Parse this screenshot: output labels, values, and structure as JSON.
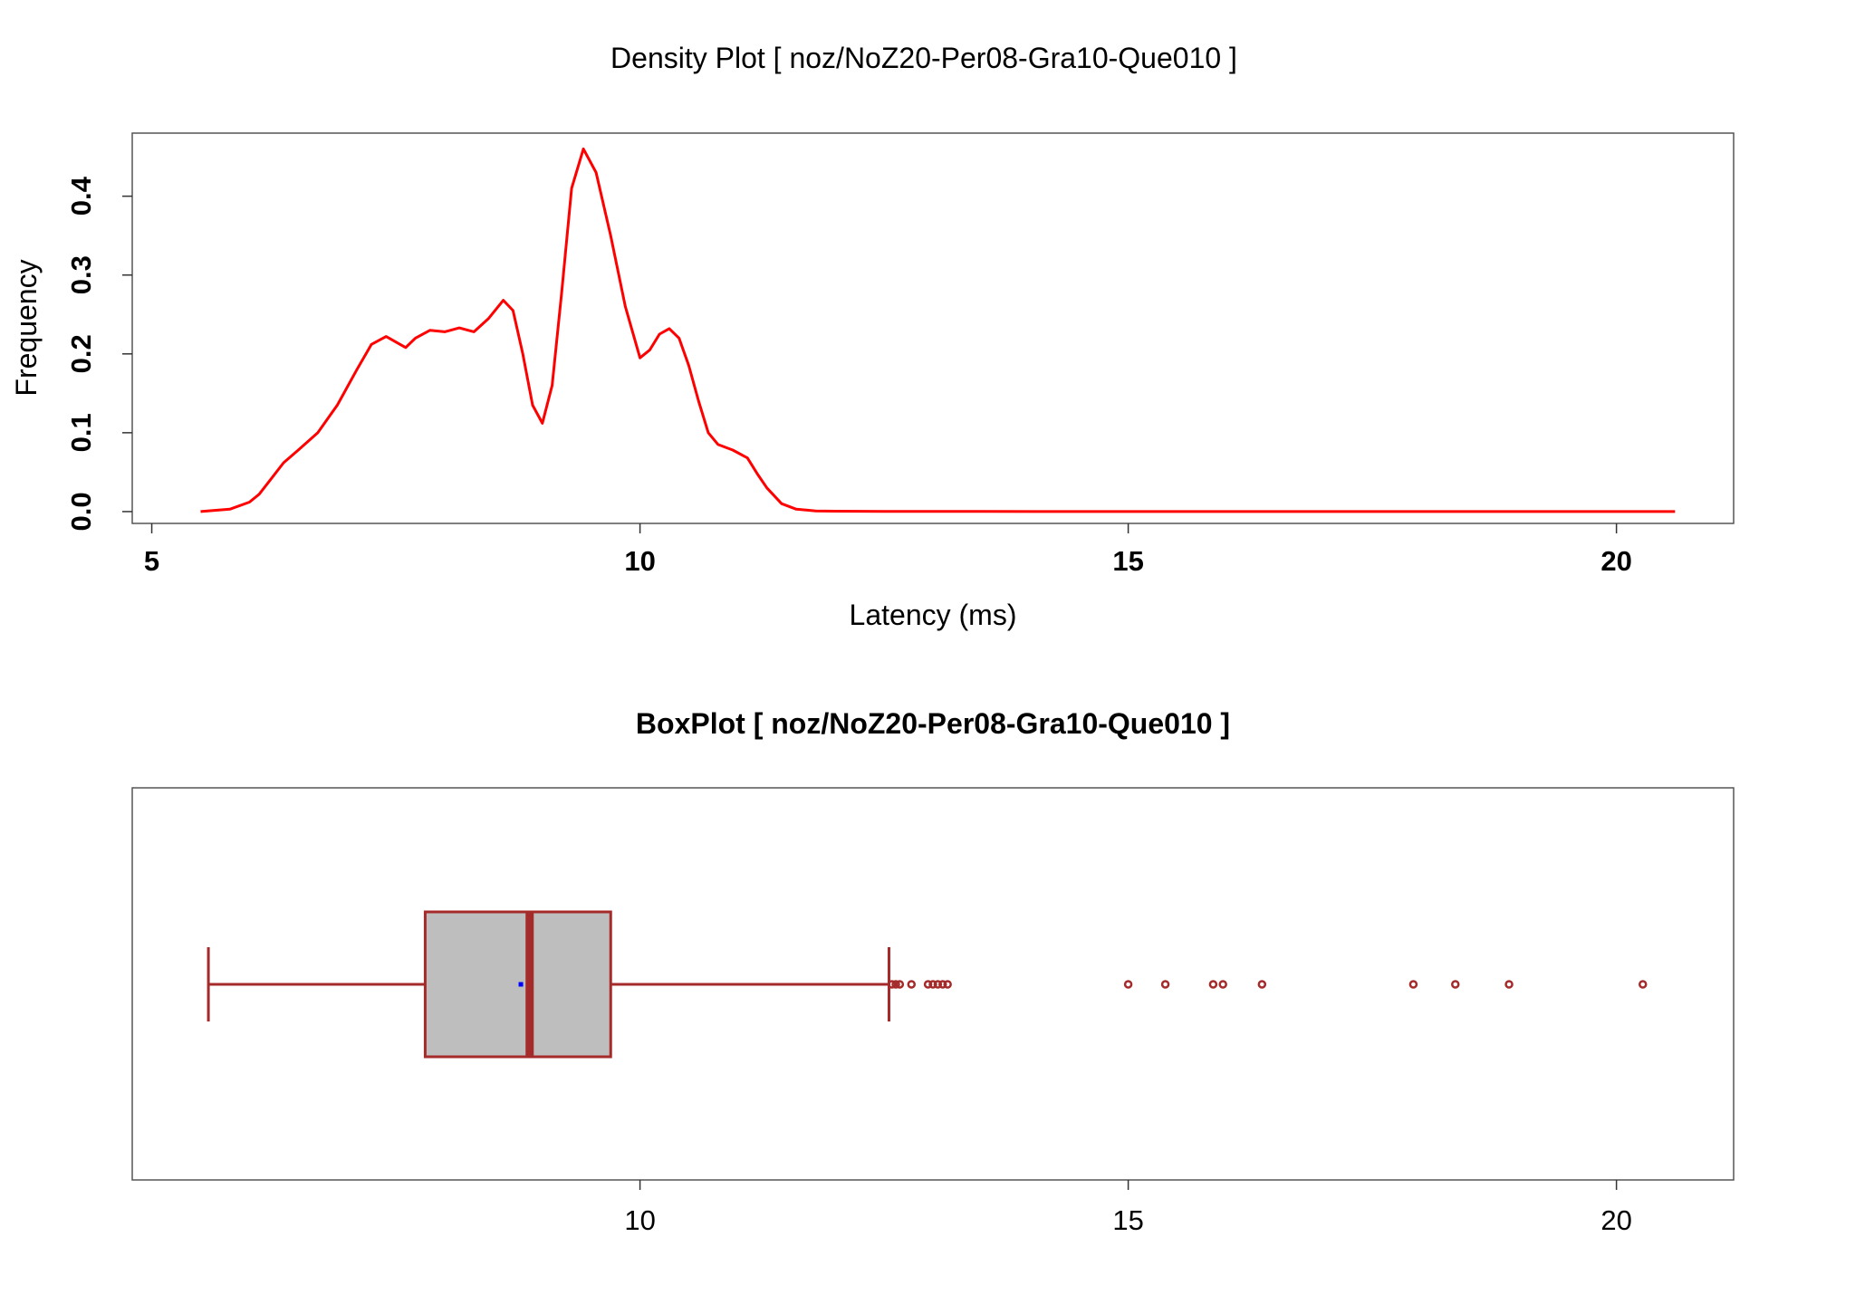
{
  "chart_data": [
    {
      "type": "line",
      "title": "Density Plot [ noz/NoZ20-Per08-Gra10-Que010 ]",
      "xlabel": "Latency (ms)",
      "ylabel": "Frequency",
      "xlim": [
        4.8,
        21.2
      ],
      "ylim": [
        -0.015,
        0.48
      ],
      "x_ticks": [
        "5",
        "10",
        "15",
        "20"
      ],
      "y_ticks": [
        "0.0",
        "0.1",
        "0.2",
        "0.3",
        "0.4"
      ],
      "grid": false,
      "legend": "none",
      "series": [
        {
          "color": "#ff0000",
          "x": [
            5.5,
            5.8,
            6.0,
            6.1,
            6.2,
            6.35,
            6.5,
            6.7,
            6.9,
            7.1,
            7.25,
            7.4,
            7.5,
            7.6,
            7.7,
            7.85,
            8.0,
            8.15,
            8.3,
            8.45,
            8.6,
            8.7,
            8.8,
            8.9,
            9.0,
            9.1,
            9.2,
            9.3,
            9.42,
            9.55,
            9.7,
            9.85,
            10.0,
            10.1,
            10.2,
            10.3,
            10.4,
            10.5,
            10.6,
            10.7,
            10.8,
            10.95,
            11.1,
            11.2,
            11.3,
            11.45,
            11.6,
            11.8,
            12.0,
            12.5,
            13.5,
            15.0,
            17.0,
            19.0,
            20.6
          ],
          "y": [
            0.0,
            0.003,
            0.012,
            0.022,
            0.038,
            0.062,
            0.078,
            0.1,
            0.135,
            0.18,
            0.212,
            0.222,
            0.215,
            0.208,
            0.22,
            0.23,
            0.228,
            0.233,
            0.228,
            0.245,
            0.268,
            0.255,
            0.2,
            0.135,
            0.112,
            0.16,
            0.28,
            0.41,
            0.46,
            0.43,
            0.35,
            0.26,
            0.195,
            0.205,
            0.225,
            0.232,
            0.22,
            0.185,
            0.14,
            0.1,
            0.085,
            0.078,
            0.068,
            0.048,
            0.03,
            0.01,
            0.003,
            0.0008,
            0.0005,
            0.0003,
            0.0002,
            0.0001,
            0.0001,
            0.0001,
            0.0
          ]
        }
      ]
    },
    {
      "type": "box",
      "title": "BoxPlot [ noz/NoZ20-Per08-Gra10-Que010 ]",
      "xlim": [
        4.8,
        21.2
      ],
      "x_ticks": [
        "10",
        "15",
        "20"
      ],
      "whisker_low": 5.58,
      "q1": 7.8,
      "median": 8.87,
      "mean": 8.78,
      "q3": 9.7,
      "whisker_high": 12.55,
      "outliers": [
        12.58,
        12.62,
        12.66,
        12.78,
        12.95,
        13.0,
        13.05,
        13.1,
        13.15,
        15.0,
        15.38,
        15.87,
        15.97,
        16.37,
        17.92,
        18.35,
        18.9,
        20.27
      ],
      "box_color": "#bebebe",
      "line_color": "#a52a2a",
      "mean_color": "#0000ff"
    }
  ]
}
